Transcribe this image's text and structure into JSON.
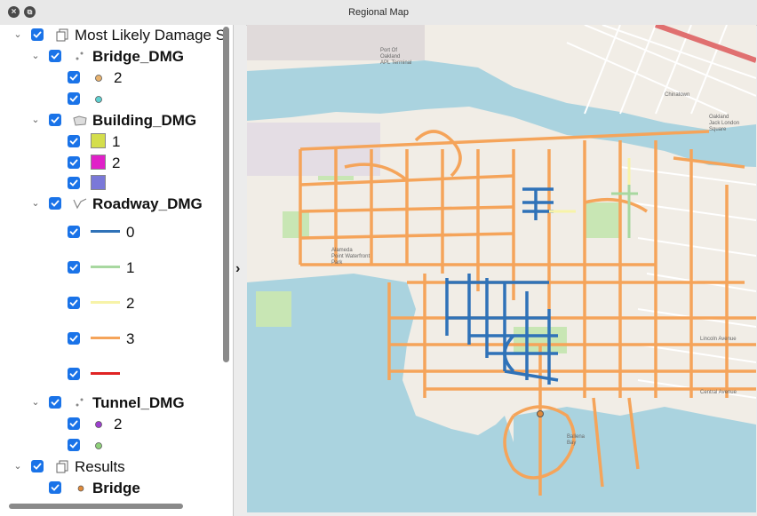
{
  "window": {
    "title": "Regional Map"
  },
  "layers": {
    "group1": {
      "label": "Most Likely Damage S"
    },
    "bridge": {
      "label": "Bridge_DMG",
      "items": [
        {
          "label": "2",
          "color": "#e8b26e"
        },
        {
          "label": "",
          "color": "#5fd1d1"
        }
      ]
    },
    "building": {
      "label": "Building_DMG",
      "items": [
        {
          "label": "1",
          "color": "#d4de4c"
        },
        {
          "label": "2",
          "color": "#e020c8"
        },
        {
          "label": "",
          "color": "#7a78d8"
        }
      ]
    },
    "roadway": {
      "label": "Roadway_DMG",
      "items": [
        {
          "label": "0",
          "color": "#2f72b8"
        },
        {
          "label": "1",
          "color": "#a8d8a0"
        },
        {
          "label": "2",
          "color": "#f7f3a8"
        },
        {
          "label": "3",
          "color": "#f5a45a"
        },
        {
          "label": "",
          "color": "#e02424"
        }
      ]
    },
    "tunnel": {
      "label": "Tunnel_DMG",
      "items": [
        {
          "label": "2",
          "color": "#9d3fcf"
        },
        {
          "label": "",
          "color": "#8fd17a"
        }
      ]
    },
    "results": {
      "label": "Results"
    },
    "results_bridge": {
      "label": "Bridge",
      "color": "#e08a3a"
    }
  },
  "map": {
    "labels": {
      "l1": "Port Of",
      "l2": "Oakland",
      "l3": "APL Terminal",
      "l4": "Oakland",
      "l5": "Chinatown",
      "l6": "Jack London",
      "l7": "Square",
      "l8": "Alameda",
      "l9": "Point Waterfront",
      "l10": "Park",
      "l11": "Lincoln Avenue",
      "l12": "Central Avenue",
      "l13": "Ballena",
      "l14": "Bay"
    },
    "colors": {
      "water": "#aad3df",
      "land": "#f1ede6",
      "road": "#f5a45a",
      "dmg0": "#2f72b8",
      "park": "#c8e6b4"
    }
  }
}
